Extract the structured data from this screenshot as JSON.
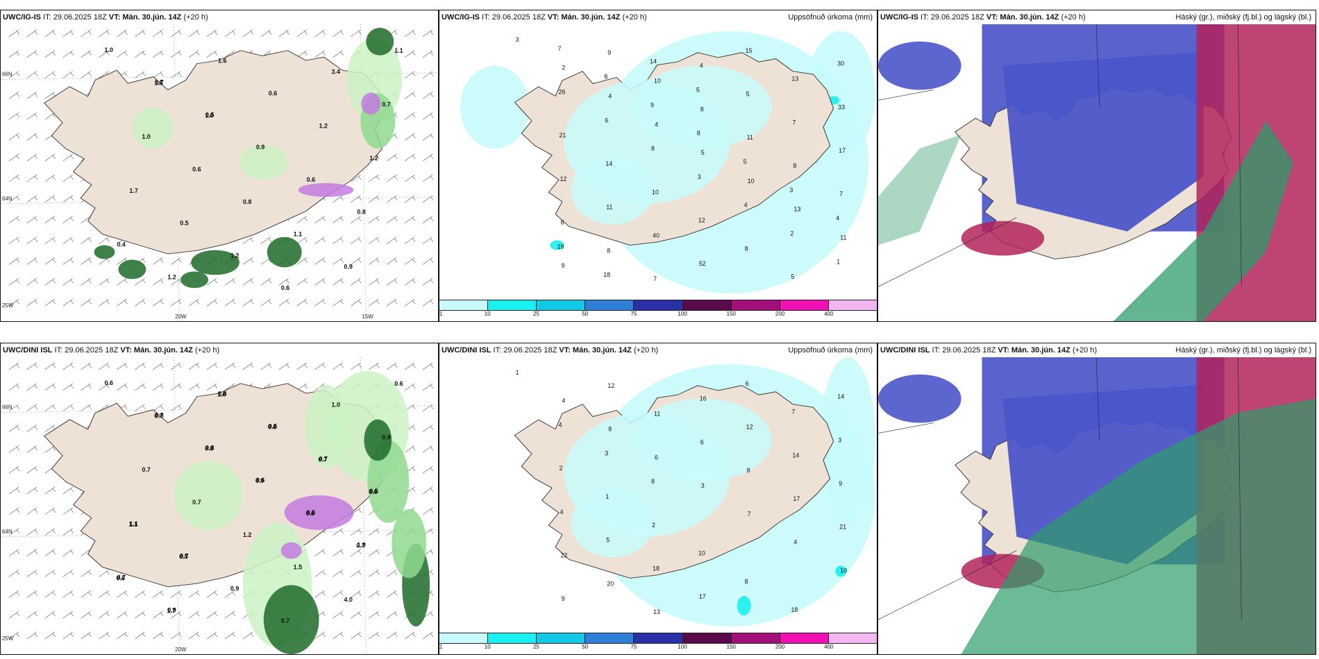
{
  "top_left": {
    "title_a": "UWC/IG-IS",
    "title_b": " IT: 29.06.2025 18Z ",
    "title_c": "VT: Mán. 30.jún. 14Z",
    "title_d": " (+20 h)",
    "lat_labels": [
      "66N",
      "64N",
      "25W"
    ],
    "lon_labels": [
      "20W",
      "15W"
    ],
    "values": [
      "1.0",
      "0.7",
      "0.5",
      "0.9",
      "0.6",
      "0.8",
      "0.4",
      "1.2",
      "1.6",
      "0.6",
      "1.2",
      "1.2",
      "1.7",
      "0.5",
      "1.2",
      "0.6",
      "3.4",
      "0.7",
      "1.0",
      "0.6",
      "0.8",
      "1.1",
      "0.9",
      "1.1",
      "1.5",
      "1.0"
    ]
  },
  "top_mid": {
    "title_a": "UWC/IG-IS",
    "title_b": " IT: 29.06.2025 18Z ",
    "title_c": "VT: Mán. 30.jún. 14Z",
    "title_d": " (+20 h)",
    "right_title": "Uppsöfnuð úrkoma (mm)",
    "values": [
      "3",
      "2",
      "4",
      "4",
      "5",
      "10",
      "13",
      "11",
      "9",
      "9",
      "10",
      "8",
      "11",
      "8",
      "7",
      "6",
      "8",
      "7",
      "4",
      "5",
      "7",
      "17",
      "12",
      "11",
      "40",
      "52",
      "15",
      "13",
      "33",
      "21",
      "14",
      "10",
      "12",
      "8",
      "5",
      "30",
      "26",
      "6",
      "8",
      "3",
      "4",
      "2",
      "1",
      "7",
      "8",
      "9",
      "8",
      "5",
      "3",
      "4",
      "19",
      "18",
      "14",
      "5"
    ]
  },
  "top_right": {
    "title_a": "UWC/IG-IS",
    "title_b": " IT: 29.06.2025 18Z ",
    "title_c": "VT: Mán. 30.jún. 14Z",
    "title_d": " (+20 h)",
    "right_title": "Háský (gr.), miðský (fj.bl.) og lágský (bl.)"
  },
  "bottom_left": {
    "title_a": "UWC/DINI ISL",
    "title_b": " IT: 29.06.2025 18Z ",
    "title_c": "VT: Mán. 30.jún. 14Z",
    "title_d": " (+20 h)",
    "lat_labels": [
      "66N",
      "64N",
      "25W"
    ],
    "lon_labels": [
      "20W"
    ],
    "values": [
      "0.6",
      "0.8",
      "0.8",
      "0.6",
      "0.5",
      "1.0",
      "0.7",
      "0.9",
      "0.8",
      "0.5",
      "0.7",
      "0.5",
      "1.1",
      "0.7",
      "0.9",
      "0.7",
      "1.0",
      "0.9",
      "0.7",
      "0.7",
      "1.2",
      "1.5",
      "4.0",
      "0.6",
      "0.7",
      "0.8",
      "0.9",
      "0.6",
      "0.7",
      "0.6",
      "1.7",
      "1.0",
      "0.6",
      "0.7",
      "0.6",
      "1.1",
      "0.5"
    ]
  },
  "bottom_mid": {
    "title_a": "UWC/DINI ISL",
    "title_b": " IT: 29.06.2025 18Z ",
    "title_c": "VT: Mán. 30.jún. 14Z",
    "title_d": " (+20 h)",
    "right_title": "Uppsöfnuð úrkoma (mm)",
    "values": [
      "1",
      "4",
      "8",
      "6",
      "3",
      "7",
      "4",
      "10",
      "9",
      "12",
      "11",
      "6",
      "8",
      "17",
      "21",
      "22",
      "20",
      "13",
      "16",
      "12",
      "14",
      "9",
      "4",
      "5",
      "18",
      "17",
      "6",
      "7",
      "3",
      "2",
      "1",
      "2",
      "10",
      "8",
      "18",
      "14",
      "4",
      "3",
      "8"
    ]
  },
  "bottom_right": {
    "title_a": "UWC/DINI ISL",
    "title_b": " IT: 29.06.2025 18Z ",
    "title_c": "VT: Mán. 30.jún. 14Z",
    "title_d": " (+20 h)",
    "right_title": "Háský (gr.), miðský (fj.bl.) og lágský (bl.)"
  },
  "colorbar": {
    "ticks": [
      "1",
      "10",
      "25",
      "50",
      "75",
      "100",
      "150",
      "200",
      "400"
    ],
    "colors": [
      "#c8fbfb",
      "#19f0f0",
      "#12c8e6",
      "#2f7fd8",
      "#2a30a8",
      "#5a0a4a",
      "#a3107a",
      "#f010b4",
      "#f3b6f0"
    ]
  },
  "colors": {
    "land": "#eee2d6",
    "precip_light": "#ccf2c6",
    "precip_mid": "#8fd98f",
    "precip_dark": "#1e6b2a",
    "snow_purple": "#c37be0",
    "cloud_high": "#2e9c6a",
    "cloud_mid": "#b1235a",
    "cloud_low": "#4b55c9"
  }
}
